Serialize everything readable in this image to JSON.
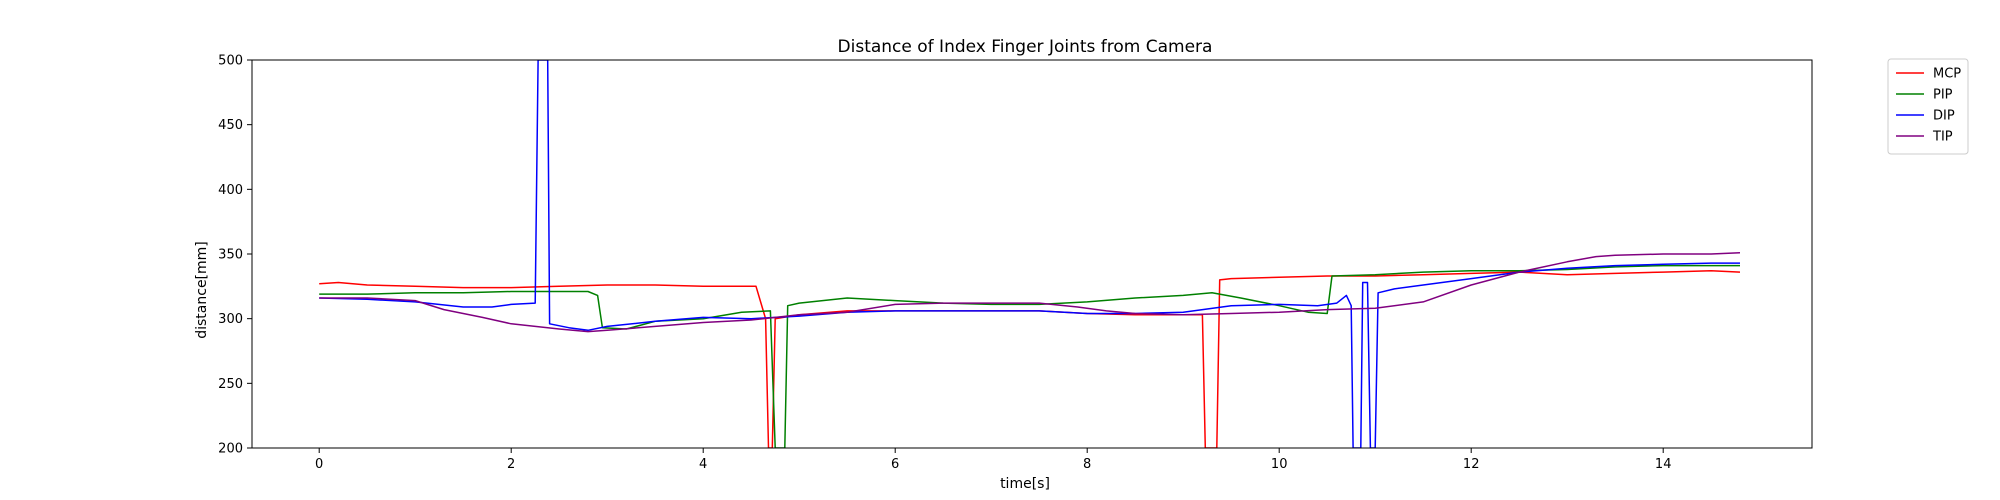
{
  "chart_data": {
    "type": "line",
    "title": "Distance of Index Finger Joints from Camera",
    "xlabel": "time[s]",
    "ylabel": "distance[mm]",
    "xlim": [
      -0.7,
      15.55
    ],
    "ylim": [
      200,
      500
    ],
    "xticks": [
      0,
      2,
      4,
      6,
      8,
      10,
      12,
      14
    ],
    "yticks": [
      200,
      250,
      300,
      350,
      400,
      450,
      500
    ],
    "grid": false,
    "legend_position": "outside-top-right",
    "series": [
      {
        "name": "MCP",
        "color": "#ff0000",
        "points": [
          [
            0,
            327
          ],
          [
            0.2,
            328
          ],
          [
            0.5,
            326
          ],
          [
            1.0,
            325
          ],
          [
            1.5,
            324
          ],
          [
            2.0,
            324
          ],
          [
            2.5,
            325
          ],
          [
            3.0,
            326
          ],
          [
            3.5,
            326
          ],
          [
            4.0,
            325
          ],
          [
            4.4,
            325
          ],
          [
            4.55,
            325
          ],
          [
            4.65,
            300
          ],
          [
            4.68,
            200
          ],
          [
            4.72,
            200
          ],
          [
            4.75,
            300
          ],
          [
            5.0,
            303
          ],
          [
            5.5,
            306
          ],
          [
            6.0,
            306
          ],
          [
            6.5,
            306
          ],
          [
            7.0,
            306
          ],
          [
            7.5,
            306
          ],
          [
            8.0,
            304
          ],
          [
            8.5,
            303
          ],
          [
            9.0,
            303
          ],
          [
            9.2,
            303
          ],
          [
            9.23,
            200
          ],
          [
            9.35,
            200
          ],
          [
            9.38,
            330
          ],
          [
            9.5,
            331
          ],
          [
            10.0,
            332
          ],
          [
            10.5,
            333
          ],
          [
            11.0,
            333
          ],
          [
            11.5,
            334
          ],
          [
            12.0,
            335
          ],
          [
            12.5,
            336
          ],
          [
            13.0,
            334
          ],
          [
            13.5,
            335
          ],
          [
            14.0,
            336
          ],
          [
            14.5,
            337
          ],
          [
            14.8,
            336
          ]
        ]
      },
      {
        "name": "PIP",
        "color": "#008000",
        "points": [
          [
            0,
            319
          ],
          [
            0.5,
            319
          ],
          [
            1.0,
            320
          ],
          [
            1.5,
            320
          ],
          [
            2.0,
            321
          ],
          [
            2.5,
            321
          ],
          [
            2.8,
            321
          ],
          [
            2.9,
            318
          ],
          [
            2.95,
            293
          ],
          [
            3.2,
            292
          ],
          [
            3.5,
            298
          ],
          [
            4.0,
            300
          ],
          [
            4.4,
            305
          ],
          [
            4.7,
            306
          ],
          [
            4.75,
            200
          ],
          [
            4.85,
            200
          ],
          [
            4.88,
            310
          ],
          [
            5.0,
            312
          ],
          [
            5.5,
            316
          ],
          [
            6.0,
            314
          ],
          [
            6.5,
            312
          ],
          [
            7.0,
            311
          ],
          [
            7.5,
            311
          ],
          [
            8.0,
            313
          ],
          [
            8.5,
            316
          ],
          [
            9.0,
            318
          ],
          [
            9.3,
            320
          ],
          [
            9.6,
            316
          ],
          [
            10.0,
            310
          ],
          [
            10.3,
            305
          ],
          [
            10.5,
            304
          ],
          [
            10.55,
            333
          ],
          [
            11.0,
            334
          ],
          [
            11.5,
            336
          ],
          [
            12.0,
            337
          ],
          [
            12.5,
            337
          ],
          [
            13.0,
            338
          ],
          [
            13.5,
            340
          ],
          [
            14.0,
            341
          ],
          [
            14.5,
            341
          ],
          [
            14.8,
            341
          ]
        ]
      },
      {
        "name": "DIP",
        "color": "#0000ff",
        "points": [
          [
            0,
            316
          ],
          [
            0.5,
            315
          ],
          [
            1.0,
            313
          ],
          [
            1.5,
            309
          ],
          [
            1.8,
            309
          ],
          [
            2.0,
            311
          ],
          [
            2.25,
            312
          ],
          [
            2.28,
            500
          ],
          [
            2.38,
            500
          ],
          [
            2.4,
            296
          ],
          [
            2.6,
            293
          ],
          [
            2.8,
            291
          ],
          [
            3.0,
            294
          ],
          [
            3.5,
            298
          ],
          [
            4.0,
            301
          ],
          [
            4.5,
            300
          ],
          [
            5.0,
            302
          ],
          [
            5.5,
            305
          ],
          [
            6.0,
            306
          ],
          [
            6.5,
            306
          ],
          [
            7.0,
            306
          ],
          [
            7.5,
            306
          ],
          [
            8.0,
            304
          ],
          [
            8.5,
            304
          ],
          [
            9.0,
            305
          ],
          [
            9.5,
            310
          ],
          [
            10.0,
            311
          ],
          [
            10.4,
            310
          ],
          [
            10.6,
            312
          ],
          [
            10.7,
            318
          ],
          [
            10.75,
            310
          ],
          [
            10.77,
            200
          ],
          [
            10.85,
            200
          ],
          [
            10.87,
            328
          ],
          [
            10.92,
            328
          ],
          [
            10.95,
            200
          ],
          [
            11.0,
            200
          ],
          [
            11.03,
            320
          ],
          [
            11.2,
            323
          ],
          [
            11.5,
            326
          ],
          [
            12.0,
            331
          ],
          [
            12.5,
            336
          ],
          [
            13.0,
            339
          ],
          [
            13.5,
            341
          ],
          [
            14.0,
            342
          ],
          [
            14.5,
            343
          ],
          [
            14.8,
            343
          ]
        ]
      },
      {
        "name": "TIP",
        "color": "#800080",
        "points": [
          [
            0,
            316
          ],
          [
            0.5,
            316
          ],
          [
            1.0,
            314
          ],
          [
            1.3,
            307
          ],
          [
            1.7,
            301
          ],
          [
            2.0,
            296
          ],
          [
            2.5,
            292
          ],
          [
            2.8,
            290
          ],
          [
            3.0,
            291
          ],
          [
            3.5,
            294
          ],
          [
            4.0,
            297
          ],
          [
            4.5,
            299
          ],
          [
            5.0,
            303
          ],
          [
            5.5,
            305
          ],
          [
            6.0,
            311
          ],
          [
            6.5,
            312
          ],
          [
            7.0,
            312
          ],
          [
            7.5,
            312
          ],
          [
            7.9,
            309
          ],
          [
            8.2,
            306
          ],
          [
            8.5,
            304
          ],
          [
            9.0,
            303
          ],
          [
            9.5,
            304
          ],
          [
            10.0,
            305
          ],
          [
            10.5,
            307
          ],
          [
            11.0,
            308
          ],
          [
            11.5,
            313
          ],
          [
            12.0,
            326
          ],
          [
            12.5,
            336
          ],
          [
            13.0,
            344
          ],
          [
            13.3,
            348
          ],
          [
            13.5,
            349
          ],
          [
            14.0,
            350
          ],
          [
            14.5,
            350
          ],
          [
            14.8,
            351
          ]
        ]
      }
    ]
  }
}
